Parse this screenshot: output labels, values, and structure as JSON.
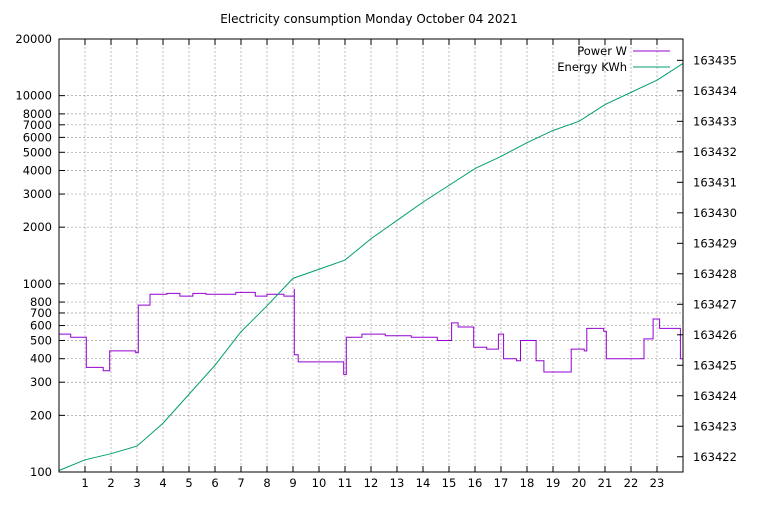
{
  "chart_data": {
    "type": "line",
    "title": "Electricity consumption Monday October 04 2021",
    "xlim": [
      0,
      24
    ],
    "x_ticks": [
      1,
      2,
      3,
      4,
      5,
      6,
      7,
      8,
      9,
      10,
      11,
      12,
      13,
      14,
      15,
      16,
      17,
      18,
      19,
      20,
      21,
      22,
      23
    ],
    "y_left": {
      "scale": "log",
      "lim": [
        100,
        20000
      ],
      "ticks": [
        100,
        200,
        300,
        400,
        500,
        600,
        700,
        800,
        1000,
        2000,
        3000,
        4000,
        5000,
        6000,
        7000,
        8000,
        10000,
        20000
      ]
    },
    "y_right": {
      "scale": "log",
      "lim": [
        163421.5,
        163435.7
      ],
      "ticks": [
        163422,
        163423,
        163424,
        163425,
        163426,
        163427,
        163428,
        163429,
        163430,
        163431,
        163432,
        163433,
        163434,
        163435
      ]
    },
    "grid": true,
    "legend_position": "top-right",
    "series": [
      {
        "name": "Power W",
        "axis": "left",
        "color": "#9400d3",
        "style": "step",
        "points": [
          [
            0,
            540
          ],
          [
            0.45,
            520
          ],
          [
            1.05,
            360
          ],
          [
            1.7,
            345
          ],
          [
            1.95,
            440
          ],
          [
            2.95,
            430
          ],
          [
            3.05,
            770
          ],
          [
            3.5,
            880
          ],
          [
            4.15,
            890
          ],
          [
            4.65,
            860
          ],
          [
            5.15,
            890
          ],
          [
            5.65,
            880
          ],
          [
            6.8,
            900
          ],
          [
            7.55,
            860
          ],
          [
            8.0,
            880
          ],
          [
            8.65,
            860
          ],
          [
            9.05,
            940
          ],
          [
            9.05,
            420
          ],
          [
            9.2,
            385
          ],
          [
            10.95,
            330
          ],
          [
            11.05,
            520
          ],
          [
            11.65,
            540
          ],
          [
            12.55,
            530
          ],
          [
            13.55,
            520
          ],
          [
            14.55,
            500
          ],
          [
            15.1,
            620
          ],
          [
            15.35,
            590
          ],
          [
            15.95,
            460
          ],
          [
            16.45,
            450
          ],
          [
            16.9,
            540
          ],
          [
            17.1,
            400
          ],
          [
            17.6,
            390
          ],
          [
            17.75,
            500
          ],
          [
            18.35,
            390
          ],
          [
            18.65,
            340
          ],
          [
            19.7,
            450
          ],
          [
            20.2,
            440
          ],
          [
            20.3,
            580
          ],
          [
            20.95,
            560
          ],
          [
            21.05,
            400
          ],
          [
            22.5,
            510
          ],
          [
            22.85,
            650
          ],
          [
            23.1,
            580
          ],
          [
            23.9,
            400
          ],
          [
            24,
            400
          ]
        ]
      },
      {
        "name": "Energy KWh",
        "axis": "right",
        "color": "#009e73",
        "style": "line",
        "points": [
          [
            0,
            163421.55
          ],
          [
            1,
            163421.9
          ],
          [
            2,
            163422.1
          ],
          [
            3,
            163422.35
          ],
          [
            4,
            163423.1
          ],
          [
            5,
            163424.05
          ],
          [
            6,
            163425.0
          ],
          [
            7,
            163426.1
          ],
          [
            8,
            163426.95
          ],
          [
            9,
            163427.85
          ],
          [
            10,
            163428.15
          ],
          [
            11,
            163428.45
          ],
          [
            12,
            163429.15
          ],
          [
            13,
            163429.75
          ],
          [
            14,
            163430.35
          ],
          [
            15,
            163430.9
          ],
          [
            16,
            163431.45
          ],
          [
            17,
            163431.85
          ],
          [
            18,
            163432.3
          ],
          [
            19,
            163432.7
          ],
          [
            20,
            163433.0
          ],
          [
            21,
            163433.55
          ],
          [
            22,
            163433.95
          ],
          [
            23,
            163434.35
          ],
          [
            24,
            163434.9
          ]
        ]
      }
    ]
  }
}
